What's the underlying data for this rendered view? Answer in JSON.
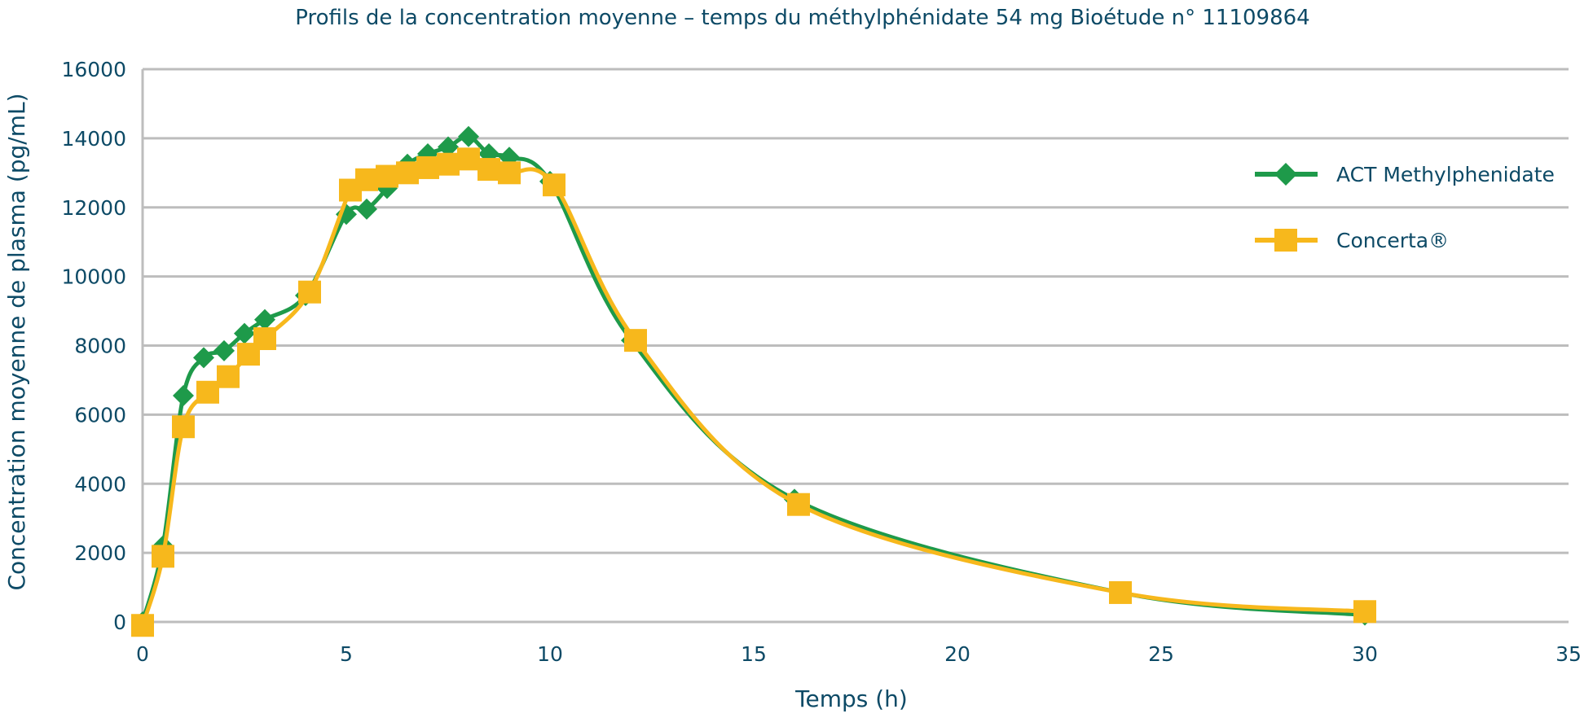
{
  "colors": {
    "text": "#0d4a66",
    "grid": "#bdbdbd",
    "act": "#1e9a4a",
    "concerta": "#f7b81c"
  },
  "chart_data": {
    "type": "line",
    "title": "Profils de la concentration moyenne – temps du méthylphénidate 54 mg Bioétude n° 11109864",
    "xlabel": "Temps (h)",
    "ylabel": "Concentration moyenne de plasma (pg/mL)",
    "xlim": [
      0,
      35
    ],
    "ylim": [
      0,
      16000
    ],
    "x_ticks": [
      "0",
      "5",
      "10",
      "15",
      "20",
      "25",
      "30",
      "35"
    ],
    "y_ticks": [
      "0",
      "2000",
      "4000",
      "6000",
      "8000",
      "10000",
      "12000",
      "14000",
      "16000"
    ],
    "grid": true,
    "legend_position": "right",
    "series": [
      {
        "name": "ACT Methylphenidate",
        "marker": "diamond",
        "color": "#1e9a4a",
        "x": [
          0,
          0.5,
          1,
          1.5,
          2,
          2.5,
          3,
          4,
          5,
          5.5,
          6,
          6.5,
          7,
          7.5,
          8,
          8.5,
          9,
          10,
          12,
          16,
          24,
          30
        ],
        "y": [
          0,
          2200,
          6550,
          7650,
          7850,
          8350,
          8750,
          9450,
          11800,
          11950,
          12550,
          13250,
          13550,
          13750,
          14050,
          13550,
          13450,
          12750,
          8150,
          3550,
          850,
          200
        ]
      },
      {
        "name": "Concerta®",
        "marker": "square",
        "color": "#f7b81c",
        "x": [
          0,
          0.5,
          1,
          1.6,
          2.1,
          2.6,
          3,
          4.1,
          5.1,
          5.5,
          6,
          6.5,
          7,
          7.5,
          8,
          8.5,
          9,
          10.1,
          12.1,
          16.1,
          24,
          30
        ],
        "y": [
          -100,
          1900,
          5650,
          6650,
          7100,
          7750,
          8200,
          9550,
          12500,
          12800,
          12900,
          13000,
          13150,
          13250,
          13400,
          13100,
          13000,
          12650,
          8150,
          3400,
          850,
          300
        ]
      }
    ]
  }
}
